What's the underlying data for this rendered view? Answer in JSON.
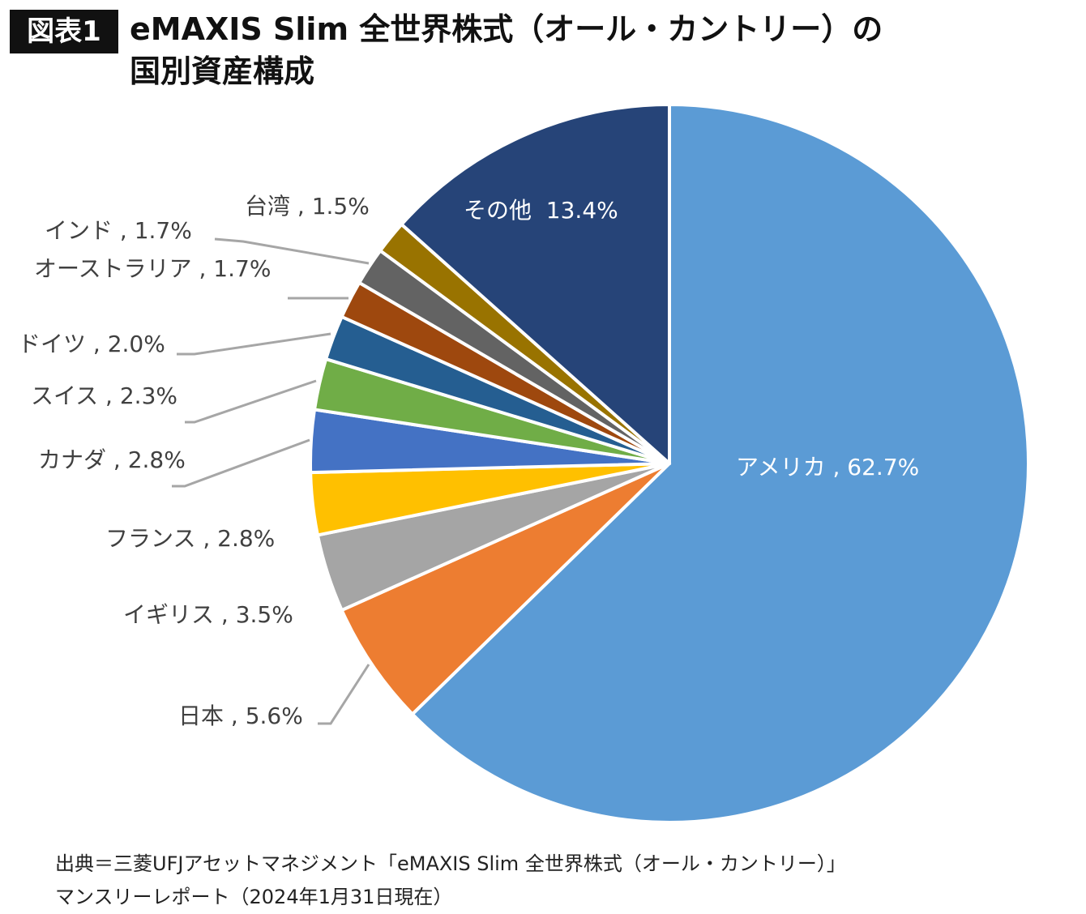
{
  "badge": "図表1",
  "title_line1": "eMAXIS Slim 全世界株式（オール・カントリー）の",
  "title_line2": "国別資産構成",
  "chart_data": {
    "type": "pie",
    "title": "eMAXIS Slim 全世界株式（オール・カントリー）の国別資産構成",
    "categories": [
      "アメリカ",
      "日本",
      "イギリス",
      "フランス",
      "カナダ",
      "スイス",
      "ドイツ",
      "オーストラリア",
      "インド",
      "台湾",
      "その他"
    ],
    "values": [
      62.7,
      5.6,
      3.5,
      2.8,
      2.8,
      2.3,
      2.0,
      1.7,
      1.7,
      1.5,
      13.4
    ],
    "labels": [
      "アメリカ , 62.7%",
      "日本 , 5.6%",
      "イギリス , 3.5%",
      "フランス , 2.8%",
      "カナダ , 2.8%",
      "スイス , 2.3%",
      "ドイツ , 2.0%",
      "オーストラリア , 1.7%",
      "インド , 1.7%",
      "台湾 , 1.5%",
      "その他  13.4%"
    ],
    "colors": [
      "#5B9BD5",
      "#ED7D31",
      "#A5A5A5",
      "#FFC000",
      "#4472C4",
      "#70AD47",
      "#255E91",
      "#9E480E",
      "#636363",
      "#997300",
      "#264478"
    ],
    "start": "top",
    "direction": "clockwise"
  },
  "footer_line1": "出典＝三菱UFJアセットマネジメント「eMAXIS Slim 全世界株式（オール・カントリー）」",
  "footer_line2": "マンスリーレポート（2024年1月31日現在）"
}
